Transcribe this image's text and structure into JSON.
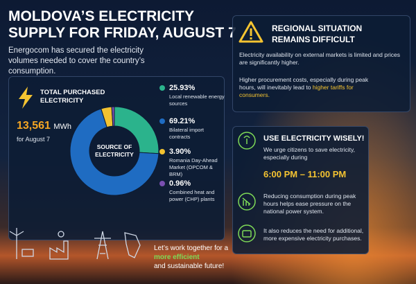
{
  "header": {
    "title_lines": [
      "MOLDOVA’S ELECTRICITY",
      "SUPPLY FOR FRIDAY, AUGUST 7"
    ],
    "subtitle": "Energocom has secured the electricity volumes needed to cover the country’s consumption."
  },
  "total": {
    "label": "TOTAL PURCHASED ELECTRICITY",
    "amount": "13,561",
    "unit": "MWh",
    "date": "for August 7"
  },
  "chart_data": {
    "type": "pie",
    "center_label": "SOURCE OF ELECTRICITY",
    "categories": [
      "Local renewable energy sources",
      "Bilateral import contracts",
      "Romania Day-Ahead Market (OPCOM & BRM)",
      "Combined heat and power (CHP) plants"
    ],
    "values": [
      25.93,
      69.21,
      3.9,
      0.96
    ],
    "value_labels": [
      "25.93%",
      "69.21%",
      "3.90%",
      "0.96%"
    ],
    "colors": [
      "#2bb38c",
      "#1f6cc2",
      "#f2c230",
      "#7a4fb0"
    ]
  },
  "regional": {
    "title": "REGIONAL SITUATION REMAINS DIFFICULT",
    "paragraph1": "Electricity availability on external markets is limited and prices are significantly higher.",
    "paragraph2": "Higher procurement costs, especially during peak hours, will inevitably lead to",
    "highlight": "higher tariffs for consumers."
  },
  "advice": {
    "title": "USE ELECTRICITY WISELY!",
    "intro": "We urge citizens to save electricity, especially during",
    "hours": "6:00 PM – 11:00 PM",
    "tips": [
      "Reducing consumption during peak hours helps ease pressure on the national power system.",
      "It also reduces the need for additional, more expensive electricity purchases."
    ]
  },
  "footer": {
    "line1": "Let’s work together for a",
    "highlight": "more efficient",
    "line3": "and sustainable future!"
  }
}
